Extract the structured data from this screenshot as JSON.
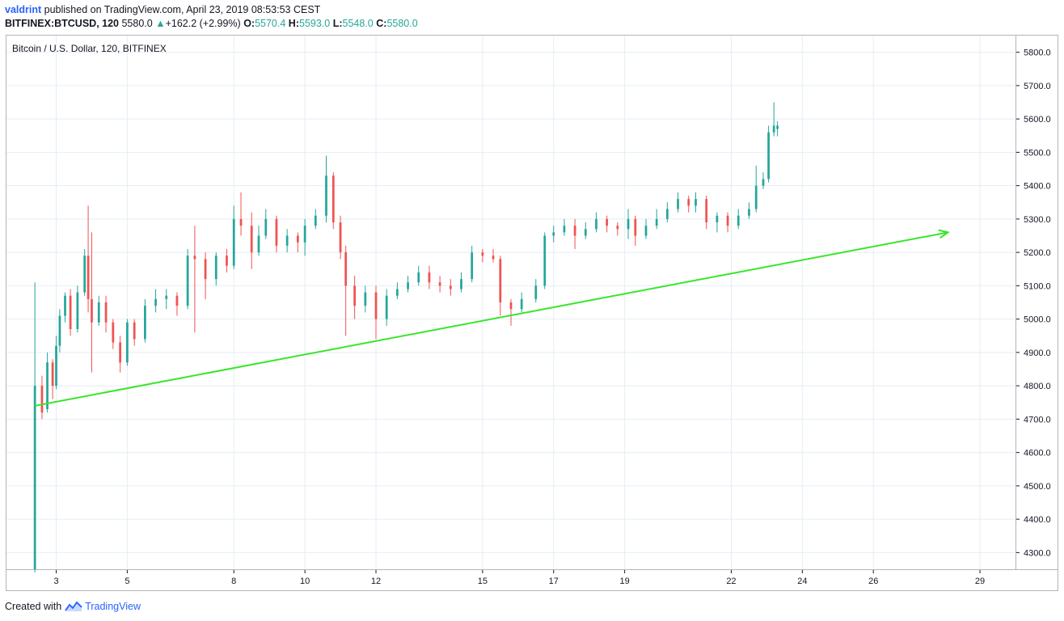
{
  "header": {
    "author": "valdrint",
    "published_text": "published on TradingView.com, April 23, 2019 08:53:53 CEST",
    "symbol": "BITFINEX:BTCUSD, 120",
    "last_price": "5580.0",
    "change_arrow": "▲",
    "change": "+162.2 (+2.99%)",
    "open_label": "O:",
    "open": "5570.4",
    "high_label": "H:",
    "high": "5593.0",
    "low_label": "L:",
    "low": "5548.0",
    "close_label": "C:",
    "close": "5580.0"
  },
  "chart_title": "Bitcoin / U.S. Dollar, 120, BITFINEX",
  "footer": {
    "created_with": "Created with",
    "brand": "TradingView"
  },
  "colors": {
    "up": "#26a69a",
    "down": "#ef5350",
    "trendline": "#39e52b",
    "grid": "#e4eef5"
  },
  "chart_data": {
    "type": "candlestick",
    "title": "Bitcoin / U.S. Dollar, 120, BITFINEX",
    "ylim": [
      4250,
      5850
    ],
    "y_ticks": [
      "5800.0",
      "5700.0",
      "5600.0",
      "5500.0",
      "5400.0",
      "5300.0",
      "5200.0",
      "5100.0",
      "5000.0",
      "4900.0",
      "4800.0",
      "4700.0",
      "4600.0",
      "4500.0",
      "4400.0",
      "4300.0"
    ],
    "xlim": [
      1.6,
      30.0
    ],
    "x_ticks": [
      {
        "day": 3,
        "label": "3"
      },
      {
        "day": 5,
        "label": "5"
      },
      {
        "day": 8,
        "label": "8"
      },
      {
        "day": 10,
        "label": "10"
      },
      {
        "day": 12,
        "label": "12"
      },
      {
        "day": 15,
        "label": "15"
      },
      {
        "day": 17,
        "label": "17"
      },
      {
        "day": 19,
        "label": "19"
      },
      {
        "day": 22,
        "label": "22"
      },
      {
        "day": 24,
        "label": "24"
      },
      {
        "day": 26,
        "label": "26"
      },
      {
        "day": 29,
        "label": "29"
      }
    ],
    "candle_days_per_bar": 0.0833,
    "trendline": {
      "start": [
        2.4,
        4740
      ],
      "end": [
        28.1,
        5260
      ],
      "arrow": true
    },
    "candles": [
      [
        2.4,
        4250,
        4800,
        4240,
        5110
      ],
      [
        2.6,
        4800,
        4720,
        4700,
        4830
      ],
      [
        2.75,
        4730,
        4870,
        4720,
        4900
      ],
      [
        2.9,
        4870,
        4800,
        4760,
        4880
      ],
      [
        3.0,
        4800,
        4920,
        4790,
        4950
      ],
      [
        3.1,
        4920,
        5010,
        4900,
        5030
      ],
      [
        3.25,
        5010,
        5070,
        4990,
        5080
      ],
      [
        3.4,
        5070,
        4970,
        4950,
        5090
      ],
      [
        3.6,
        4970,
        5080,
        4960,
        5100
      ],
      [
        3.8,
        5080,
        5190,
        5070,
        5210
      ],
      [
        3.9,
        5190,
        5060,
        5020,
        5340
      ],
      [
        4.0,
        5060,
        4990,
        4840,
        5260
      ],
      [
        4.2,
        4990,
        5050,
        4980,
        5070
      ],
      [
        4.4,
        5050,
        4990,
        4960,
        5070
      ],
      [
        4.6,
        4990,
        4930,
        4910,
        5000
      ],
      [
        4.8,
        4930,
        4870,
        4840,
        4950
      ],
      [
        5.0,
        4870,
        4990,
        4860,
        5000
      ],
      [
        5.2,
        4990,
        4940,
        4920,
        5000
      ],
      [
        5.5,
        4940,
        5040,
        4930,
        5060
      ],
      [
        5.8,
        5040,
        5060,
        5020,
        5090
      ],
      [
        6.1,
        5060,
        5070,
        5030,
        5090
      ],
      [
        6.4,
        5070,
        5040,
        5010,
        5080
      ],
      [
        6.7,
        5040,
        5190,
        5030,
        5210
      ],
      [
        6.9,
        5190,
        5180,
        4960,
        5280
      ],
      [
        7.2,
        5180,
        5120,
        5060,
        5200
      ],
      [
        7.5,
        5120,
        5190,
        5100,
        5200
      ],
      [
        7.8,
        5190,
        5160,
        5140,
        5210
      ],
      [
        8.0,
        5160,
        5300,
        5150,
        5340
      ],
      [
        8.2,
        5300,
        5280,
        5250,
        5380
      ],
      [
        8.5,
        5280,
        5200,
        5150,
        5320
      ],
      [
        8.7,
        5200,
        5250,
        5190,
        5280
      ],
      [
        8.9,
        5250,
        5300,
        5240,
        5330
      ],
      [
        9.2,
        5300,
        5220,
        5200,
        5310
      ],
      [
        9.5,
        5220,
        5250,
        5200,
        5270
      ],
      [
        9.8,
        5250,
        5230,
        5200,
        5260
      ],
      [
        10.0,
        5230,
        5280,
        5190,
        5300
      ],
      [
        10.3,
        5280,
        5310,
        5270,
        5330
      ],
      [
        10.6,
        5310,
        5430,
        5290,
        5490
      ],
      [
        10.8,
        5430,
        5290,
        5270,
        5440
      ],
      [
        11.0,
        5290,
        5200,
        5180,
        5310
      ],
      [
        11.15,
        5200,
        5100,
        4950,
        5220
      ],
      [
        11.4,
        5100,
        5040,
        5000,
        5130
      ],
      [
        11.7,
        5040,
        5080,
        5020,
        5100
      ],
      [
        12.0,
        5080,
        5000,
        4940,
        5100
      ],
      [
        12.3,
        5000,
        5070,
        4980,
        5090
      ],
      [
        12.6,
        5070,
        5090,
        5060,
        5110
      ],
      [
        12.9,
        5090,
        5110,
        5080,
        5130
      ],
      [
        13.2,
        5110,
        5140,
        5100,
        5160
      ],
      [
        13.5,
        5140,
        5110,
        5090,
        5160
      ],
      [
        13.8,
        5110,
        5100,
        5080,
        5130
      ],
      [
        14.1,
        5100,
        5090,
        5070,
        5120
      ],
      [
        14.4,
        5090,
        5120,
        5080,
        5140
      ],
      [
        14.7,
        5120,
        5200,
        5110,
        5220
      ],
      [
        15.0,
        5200,
        5190,
        5170,
        5210
      ],
      [
        15.3,
        5190,
        5180,
        5170,
        5210
      ],
      [
        15.5,
        5180,
        5050,
        5010,
        5190
      ],
      [
        15.8,
        5050,
        5030,
        4980,
        5060
      ],
      [
        16.1,
        5030,
        5060,
        5020,
        5080
      ],
      [
        16.5,
        5060,
        5100,
        5050,
        5120
      ],
      [
        16.75,
        5100,
        5250,
        5090,
        5260
      ],
      [
        17.0,
        5250,
        5260,
        5230,
        5280
      ],
      [
        17.3,
        5260,
        5280,
        5250,
        5300
      ],
      [
        17.6,
        5280,
        5250,
        5210,
        5300
      ],
      [
        17.9,
        5250,
        5270,
        5240,
        5290
      ],
      [
        18.2,
        5270,
        5300,
        5260,
        5320
      ],
      [
        18.5,
        5300,
        5280,
        5260,
        5310
      ],
      [
        18.8,
        5280,
        5270,
        5250,
        5290
      ],
      [
        19.1,
        5270,
        5300,
        5240,
        5330
      ],
      [
        19.3,
        5300,
        5250,
        5220,
        5310
      ],
      [
        19.6,
        5250,
        5280,
        5240,
        5300
      ],
      [
        19.9,
        5280,
        5300,
        5270,
        5330
      ],
      [
        20.2,
        5300,
        5330,
        5290,
        5350
      ],
      [
        20.5,
        5330,
        5360,
        5320,
        5380
      ],
      [
        20.8,
        5360,
        5340,
        5320,
        5370
      ],
      [
        21.0,
        5340,
        5360,
        5320,
        5380
      ],
      [
        21.3,
        5360,
        5290,
        5270,
        5370
      ],
      [
        21.6,
        5290,
        5310,
        5260,
        5320
      ],
      [
        21.9,
        5310,
        5280,
        5260,
        5320
      ],
      [
        22.2,
        5280,
        5310,
        5270,
        5330
      ],
      [
        22.5,
        5310,
        5330,
        5300,
        5350
      ],
      [
        22.7,
        5330,
        5400,
        5320,
        5460
      ],
      [
        22.9,
        5400,
        5420,
        5390,
        5440
      ],
      [
        23.05,
        5420,
        5560,
        5410,
        5580
      ],
      [
        23.2,
        5560,
        5580,
        5548,
        5650
      ],
      [
        23.3,
        5570,
        5580,
        5548,
        5593
      ]
    ]
  }
}
